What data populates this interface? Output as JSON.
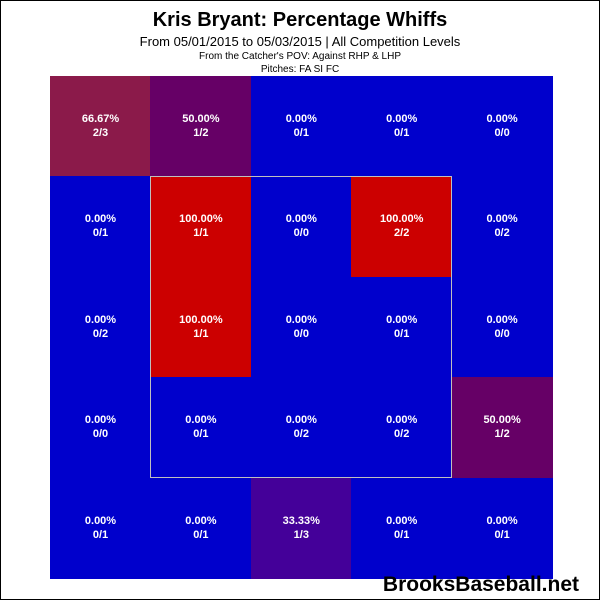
{
  "chart_data": {
    "type": "heatmap",
    "title": "Kris Bryant: Percentage Whiffs",
    "subtitle": "From 05/01/2015 to 05/03/2015 | All Competition Levels",
    "pov_line": "From the Catcher's POV:   Against RHP & LHP",
    "pitches_line": "Pitches:  FA  SI  FC",
    "rows": 5,
    "cols": 5,
    "cells": [
      [
        {
          "pct": "66.67%",
          "frac": "2/3",
          "value": 66.67,
          "color": "#8b1a4a"
        },
        {
          "pct": "50.00%",
          "frac": "1/2",
          "value": 50.0,
          "color": "#660066"
        },
        {
          "pct": "0.00%",
          "frac": "0/1",
          "value": 0,
          "color": "#0000cc"
        },
        {
          "pct": "0.00%",
          "frac": "0/1",
          "value": 0,
          "color": "#0000cc"
        },
        {
          "pct": "0.00%",
          "frac": "0/0",
          "value": 0,
          "color": "#0000cc"
        }
      ],
      [
        {
          "pct": "0.00%",
          "frac": "0/1",
          "value": 0,
          "color": "#0000cc"
        },
        {
          "pct": "100.00%",
          "frac": "1/1",
          "value": 100,
          "color": "#cc0000"
        },
        {
          "pct": "0.00%",
          "frac": "0/0",
          "value": 0,
          "color": "#0000cc"
        },
        {
          "pct": "100.00%",
          "frac": "2/2",
          "value": 100,
          "color": "#cc0000"
        },
        {
          "pct": "0.00%",
          "frac": "0/2",
          "value": 0,
          "color": "#0000cc"
        }
      ],
      [
        {
          "pct": "0.00%",
          "frac": "0/2",
          "value": 0,
          "color": "#0000cc"
        },
        {
          "pct": "100.00%",
          "frac": "1/1",
          "value": 100,
          "color": "#cc0000"
        },
        {
          "pct": "0.00%",
          "frac": "0/0",
          "value": 0,
          "color": "#0000cc"
        },
        {
          "pct": "0.00%",
          "frac": "0/1",
          "value": 0,
          "color": "#0000cc"
        },
        {
          "pct": "0.00%",
          "frac": "0/0",
          "value": 0,
          "color": "#0000cc"
        }
      ],
      [
        {
          "pct": "0.00%",
          "frac": "0/0",
          "value": 0,
          "color": "#0000cc"
        },
        {
          "pct": "0.00%",
          "frac": "0/1",
          "value": 0,
          "color": "#0000cc"
        },
        {
          "pct": "0.00%",
          "frac": "0/2",
          "value": 0,
          "color": "#0000cc"
        },
        {
          "pct": "0.00%",
          "frac": "0/2",
          "value": 0,
          "color": "#0000cc"
        },
        {
          "pct": "50.00%",
          "frac": "1/2",
          "value": 50.0,
          "color": "#660066"
        }
      ],
      [
        {
          "pct": "0.00%",
          "frac": "0/1",
          "value": 0,
          "color": "#0000cc"
        },
        {
          "pct": "0.00%",
          "frac": "0/1",
          "value": 0,
          "color": "#0000cc"
        },
        {
          "pct": "33.33%",
          "frac": "1/3",
          "value": 33.33,
          "color": "#440099"
        },
        {
          "pct": "0.00%",
          "frac": "0/1",
          "value": 0,
          "color": "#0000cc"
        },
        {
          "pct": "0.00%",
          "frac": "0/1",
          "value": 0,
          "color": "#0000cc"
        }
      ]
    ]
  },
  "watermark": "BrooksBaseball.net",
  "zone_color": "#bfbfbf"
}
